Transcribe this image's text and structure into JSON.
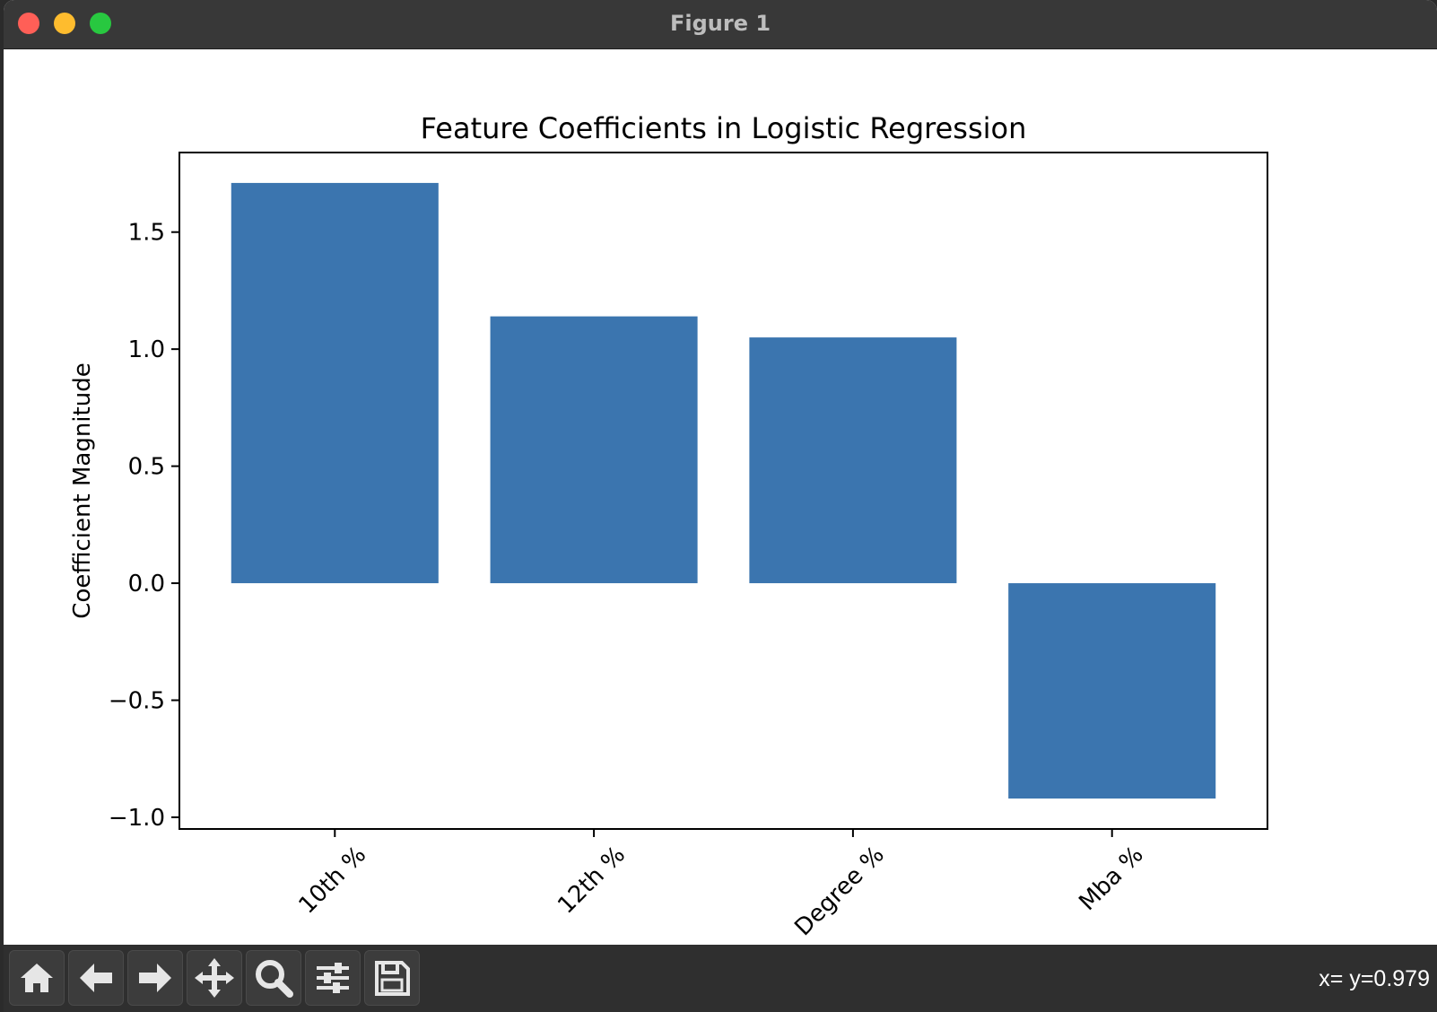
{
  "window": {
    "title": "Figure 1"
  },
  "toolbar": {
    "buttons": [
      {
        "name": "home-button",
        "icon": "home-icon"
      },
      {
        "name": "back-button",
        "icon": "arrow-left-icon"
      },
      {
        "name": "forward-button",
        "icon": "arrow-right-icon"
      },
      {
        "name": "pan-button",
        "icon": "move-icon"
      },
      {
        "name": "zoom-button",
        "icon": "magnifier-icon"
      },
      {
        "name": "configure-subplots-button",
        "icon": "sliders-icon"
      },
      {
        "name": "save-button",
        "icon": "floppy-disk-icon"
      }
    ],
    "coords": "x= y=0.979"
  },
  "chart_data": {
    "type": "bar",
    "title": "Feature Coefficients in Logistic Regression",
    "xlabel": "",
    "ylabel": "Coefficient Magnitude",
    "categories": [
      "10th %",
      "12th %",
      "Degree %",
      "Mba %"
    ],
    "values": [
      1.71,
      1.14,
      1.05,
      -0.92
    ],
    "ylim": [
      -1.05,
      1.84
    ],
    "yticks": [
      -1.0,
      -0.5,
      0.0,
      0.5,
      1.0,
      1.5
    ],
    "ytick_labels": [
      "−1.0",
      "−0.5",
      "0.0",
      "0.5",
      "1.0",
      "1.5"
    ],
    "bar_color": "#3b75af",
    "grid": false,
    "legend": "none"
  }
}
